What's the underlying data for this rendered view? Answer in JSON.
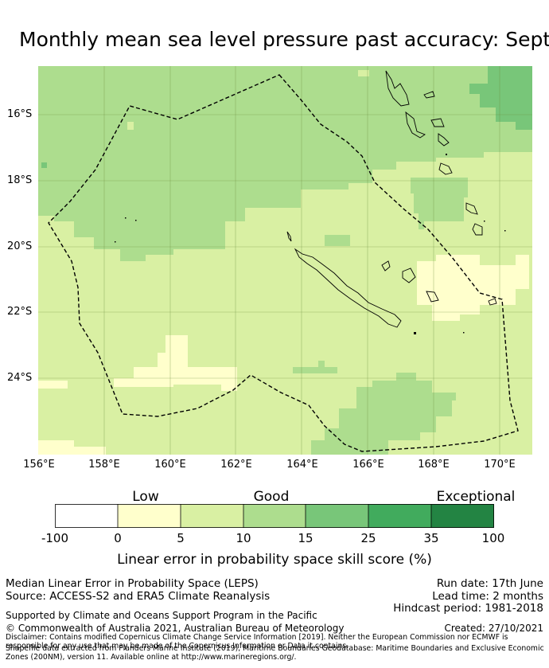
{
  "title": "Monthly mean sea level pressure past accuracy: September",
  "map": {
    "lat_labels": [
      "16°S",
      "18°S",
      "20°S",
      "22°S",
      "24°S"
    ],
    "lon_labels": [
      "156°E",
      "158°E",
      "160°E",
      "162°E",
      "164°E",
      "166°E",
      "168°E",
      "170°E"
    ],
    "colors": {
      "white": "#ffffff",
      "low": "#ffffcc",
      "good_light": "#d9f0a3",
      "good": "#addd8e",
      "good_strong": "#78c679",
      "exceptional_light": "#41ab5d",
      "exceptional": "#238443"
    },
    "boundary": "dashed",
    "grid": true
  },
  "legend": {
    "categories": [
      "Low",
      "Good",
      "Exceptional"
    ],
    "ticks": [
      "-100",
      "0",
      "5",
      "10",
      "15",
      "25",
      "35",
      "100"
    ],
    "label": "Linear error in probability space skill score (%)"
  },
  "info": {
    "left_line1": "Median Linear Error in Probability Space (LEPS)",
    "left_line2": "Source: ACCESS-S2 and ERA5 Climate Reanalysis",
    "run_date": "Run date: 17th June",
    "lead_time": "Lead time: 2 months",
    "hindcast": "Hindcast period: 1981-2018",
    "supported": "Supported by Climate and Oceans Support Program in the Pacific",
    "copyright": "© Commonwealth of Australia 2021, Australian Bureau of Meteorology",
    "created": "Created: 27/10/2021",
    "disclaimer": "Disclaimer: Contains modified Copernicus Climate Change Service Information [2019]. Neither the European Commission nor ECMWF is responsible for any use that may be made of the Copernicus Information or Data it contains.",
    "shapefile": "Shapefile data extracted from Flanders Marine Institute (2019), Maritime Boundaries Geodatabase: Maritime Boundaries and Exclusive Economic Zones (200NM), version 11. Available online at http://www.marineregions.org/."
  }
}
